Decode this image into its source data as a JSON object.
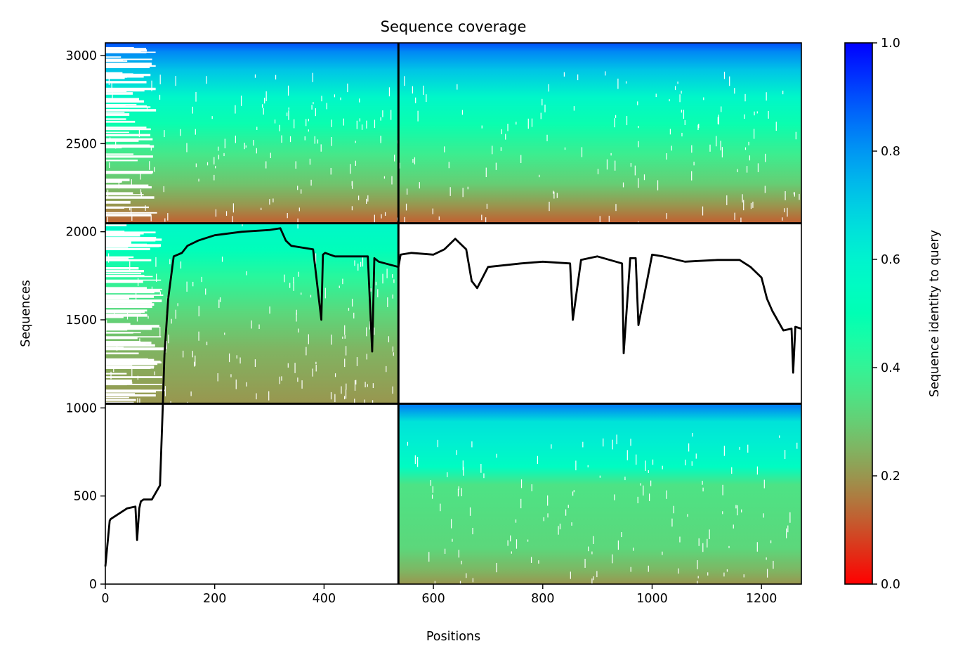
{
  "chart_data": {
    "type": "heatmap",
    "title": "Sequence coverage",
    "xlabel": "Positions",
    "ylabel": "Sequences",
    "xlim": [
      0,
      1273
    ],
    "ylim": [
      0,
      3072
    ],
    "xticks": [
      0,
      200,
      400,
      600,
      800,
      1000,
      1200
    ],
    "yticks": [
      0,
      500,
      1000,
      1500,
      2000,
      2500,
      3000
    ],
    "colorbar": {
      "label": "Sequence identity to query",
      "range": [
        0,
        1
      ],
      "ticks": [
        "0.0",
        "0.2",
        "0.4",
        "0.6",
        "0.8",
        "1.0"
      ],
      "colormap": "rainbow_r"
    },
    "chain_boundaries": {
      "positions": [
        536
      ],
      "sequences": [
        1024,
        2048
      ]
    },
    "blocks": [
      {
        "name": "top-left",
        "x": [
          0,
          536
        ],
        "y": [
          2048,
          3072
        ],
        "stops": [
          [
            0,
            0.12
          ],
          [
            0.1,
            0.2
          ],
          [
            0.22,
            0.28
          ],
          [
            0.38,
            0.36
          ],
          [
            0.55,
            0.48
          ],
          [
            0.7,
            0.58
          ],
          [
            0.85,
            0.72
          ],
          [
            0.95,
            0.82
          ],
          [
            1,
            0.9
          ]
        ]
      },
      {
        "name": "top-right",
        "x": [
          536,
          1273
        ],
        "y": [
          2048,
          3072
        ],
        "stops": [
          [
            0,
            0.12
          ],
          [
            0.1,
            0.2
          ],
          [
            0.22,
            0.3
          ],
          [
            0.38,
            0.38
          ],
          [
            0.55,
            0.48
          ],
          [
            0.7,
            0.58
          ],
          [
            0.85,
            0.72
          ],
          [
            0.95,
            0.82
          ],
          [
            1,
            0.9
          ]
        ]
      },
      {
        "name": "middle-left",
        "x": [
          0,
          536
        ],
        "y": [
          1024,
          2048
        ],
        "stops": [
          [
            0,
            0.2
          ],
          [
            0.3,
            0.25
          ],
          [
            0.5,
            0.32
          ],
          [
            0.7,
            0.42
          ],
          [
            0.85,
            0.52
          ],
          [
            1,
            0.58
          ]
        ]
      },
      {
        "name": "bottom-right",
        "x": [
          536,
          1273
        ],
        "y": [
          0,
          1024
        ],
        "stops": [
          [
            0,
            0.2
          ],
          [
            0.07,
            0.25
          ],
          [
            0.2,
            0.32
          ],
          [
            0.55,
            0.35
          ],
          [
            0.65,
            0.55
          ],
          [
            0.8,
            0.62
          ],
          [
            0.9,
            0.65
          ],
          [
            1,
            0.85
          ]
        ]
      }
    ],
    "coverage_line": {
      "x": [
        0,
        8,
        10,
        40,
        55,
        58,
        62,
        65,
        70,
        85,
        100,
        105,
        108,
        115,
        120,
        125,
        140,
        150,
        170,
        200,
        250,
        300,
        320,
        330,
        340,
        380,
        395,
        398,
        402,
        420,
        480,
        488,
        492,
        500,
        536,
        540,
        560,
        600,
        620,
        640,
        660,
        670,
        680,
        700,
        730,
        760,
        800,
        850,
        855,
        870,
        900,
        945,
        948,
        960,
        970,
        975,
        1000,
        1020,
        1060,
        1120,
        1160,
        1180,
        1200,
        1210,
        1220,
        1240,
        1255,
        1258,
        1262,
        1273
      ],
      "y": [
        100,
        360,
        370,
        430,
        440,
        250,
        430,
        470,
        480,
        480,
        560,
        1000,
        1300,
        1620,
        1740,
        1860,
        1880,
        1920,
        1950,
        1980,
        2000,
        2010,
        2020,
        1950,
        1920,
        1900,
        1500,
        1870,
        1880,
        1860,
        1860,
        1320,
        1850,
        1830,
        1800,
        1870,
        1880,
        1870,
        1900,
        1960,
        1900,
        1720,
        1680,
        1800,
        1810,
        1820,
        1830,
        1820,
        1500,
        1840,
        1860,
        1820,
        1310,
        1850,
        1850,
        1470,
        1870,
        1860,
        1830,
        1840,
        1840,
        1800,
        1740,
        1620,
        1550,
        1440,
        1450,
        1200,
        1460,
        1450
      ]
    }
  }
}
